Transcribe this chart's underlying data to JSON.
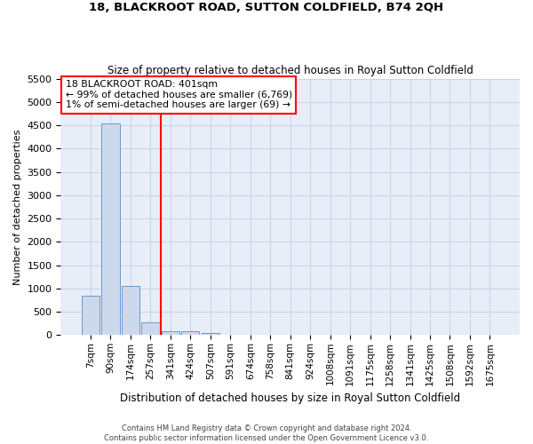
{
  "title": "18, BLACKROOT ROAD, SUTTON COLDFIELD, B74 2QH",
  "subtitle": "Size of property relative to detached houses in Royal Sutton Coldfield",
  "xlabel": "Distribution of detached houses by size in Royal Sutton Coldfield",
  "ylabel": "Number of detached properties",
  "footer_line1": "Contains HM Land Registry data © Crown copyright and database right 2024.",
  "footer_line2": "Contains public sector information licensed under the Open Government Licence v3.0.",
  "categories": [
    "7sqm",
    "90sqm",
    "174sqm",
    "257sqm",
    "341sqm",
    "424sqm",
    "507sqm",
    "591sqm",
    "674sqm",
    "758sqm",
    "841sqm",
    "924sqm",
    "1008sqm",
    "1091sqm",
    "1175sqm",
    "1258sqm",
    "1341sqm",
    "1425sqm",
    "1508sqm",
    "1592sqm",
    "1675sqm"
  ],
  "values": [
    850,
    4540,
    1060,
    270,
    90,
    80,
    50,
    0,
    0,
    0,
    0,
    0,
    0,
    0,
    0,
    0,
    0,
    0,
    0,
    0,
    0
  ],
  "bar_color": "#ccd9ed",
  "bar_edge_color": "#6699cc",
  "grid_color": "#c8d4e8",
  "background_color": "#e8eef8",
  "vline_color": "red",
  "vline_x_index": 4,
  "annotation_text": "18 BLACKROOT ROAD: 401sqm\n← 99% of detached houses are smaller (6,769)\n1% of semi-detached houses are larger (69) →",
  "annotation_box_color": "white",
  "annotation_box_edge_color": "red",
  "ylim_max": 5500,
  "yticks": [
    0,
    500,
    1000,
    1500,
    2000,
    2500,
    3000,
    3500,
    4000,
    4500,
    5000,
    5500
  ]
}
